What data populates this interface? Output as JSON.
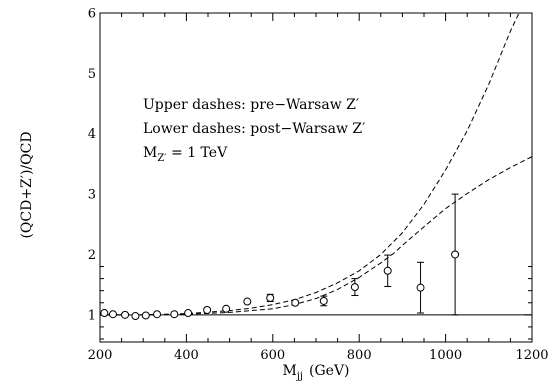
{
  "chart_data": {
    "type": "scatter",
    "title": "",
    "xlabel": "M",
    "xlabel_sub": "jj",
    "xlabel_unit": "(GeV)",
    "ylabel": "(QCD+Z′)/QCD",
    "xlim": [
      200,
      1200
    ],
    "ylim": [
      0.55,
      6
    ],
    "x_ticks": [
      200,
      400,
      600,
      800,
      1000,
      1200
    ],
    "y_ticks": [
      1,
      2,
      3,
      4,
      5,
      6
    ],
    "annotations": {
      "line1": "Upper dashes: pre−Warsaw Z′",
      "line2": "Lower dashes: post−Warsaw Z′",
      "line3_main": "M",
      "line3_sub": "Z′",
      "line3_value": " = 1 TeV"
    },
    "series": [
      {
        "style": "points-with-errorbars",
        "x": [
          210,
          230,
          258,
          282,
          306,
          332,
          372,
          404,
          448,
          492,
          541,
          594,
          652,
          718,
          790,
          866,
          942,
          1022
        ],
        "y": [
          1.03,
          1.01,
          1.0,
          0.98,
          0.99,
          1.01,
          1.01,
          1.03,
          1.08,
          1.1,
          1.22,
          1.28,
          1.2,
          1.23,
          1.46,
          1.73,
          1.45,
          2.0
        ],
        "yerr": [
          0.01,
          0.01,
          0.01,
          0.01,
          0.01,
          0.01,
          0.02,
          0.02,
          0.03,
          0.04,
          0.05,
          0.06,
          0.05,
          0.08,
          0.14,
          0.26,
          0.42,
          1.0
        ]
      },
      {
        "style": "dashed",
        "x": [
          200,
          300,
          400,
          500,
          550,
          600,
          650,
          700,
          750,
          800,
          850,
          900,
          950,
          1000,
          1050,
          1100,
          1150,
          1170
        ],
        "y": [
          1.0,
          1.0,
          1.02,
          1.07,
          1.11,
          1.17,
          1.25,
          1.37,
          1.53,
          1.73,
          2.0,
          2.36,
          2.83,
          3.4,
          4.05,
          4.82,
          5.7,
          6.0
        ]
      },
      {
        "style": "dashed",
        "x": [
          200,
          300,
          400,
          500,
          600,
          650,
          700,
          750,
          800,
          850,
          880,
          900,
          950,
          1000,
          1050,
          1100,
          1150,
          1200
        ],
        "y": [
          1.0,
          1.0,
          1.01,
          1.04,
          1.1,
          1.17,
          1.27,
          1.42,
          1.62,
          1.86,
          2.02,
          2.15,
          2.46,
          2.76,
          3.01,
          3.24,
          3.44,
          3.62
        ]
      },
      {
        "style": "solid",
        "x": [
          200,
          1200
        ],
        "y": [
          1,
          1
        ]
      }
    ]
  }
}
